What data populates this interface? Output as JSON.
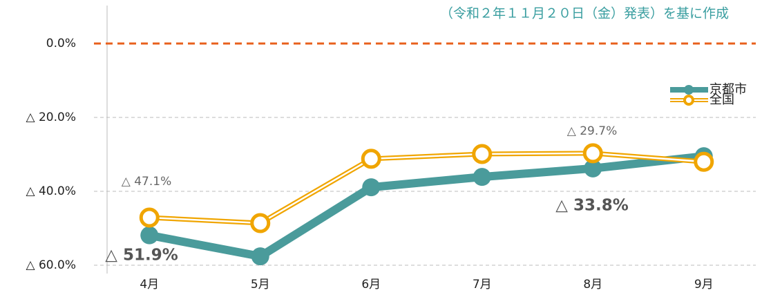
{
  "chart_data": {
    "type": "line",
    "subtitle": "（令和２年１１月２０日（金）発表）を基に作成",
    "categories": [
      "4月",
      "5月",
      "6月",
      "7月",
      "8月",
      "9月"
    ],
    "series": [
      {
        "name": "京都市",
        "color": "#4a9b9b",
        "values": [
          -51.9,
          -57.6,
          -38.9,
          -36.1,
          -33.8,
          -30.5
        ],
        "value_labels": [
          "△ 51.9%",
          null,
          null,
          null,
          "△ 33.8%",
          null
        ]
      },
      {
        "name": "全国",
        "color": "#f0a500",
        "values": [
          -47.1,
          -48.6,
          -31.2,
          -29.9,
          -29.7,
          -32.0
        ],
        "value_labels": [
          "△ 47.1%",
          null,
          null,
          null,
          "△ 29.7%",
          null
        ]
      }
    ],
    "ylim": [
      -60,
      0
    ],
    "yticks": [
      {
        "value": 0,
        "label": "0.0%"
      },
      {
        "value": -20,
        "label": "△ 20.0%"
      },
      {
        "value": -40,
        "label": "△ 40.0%"
      },
      {
        "value": -60,
        "label": "△ 60.0%"
      }
    ],
    "grid": true,
    "zero_line_color": "#e8601c",
    "legend": "upper right"
  }
}
